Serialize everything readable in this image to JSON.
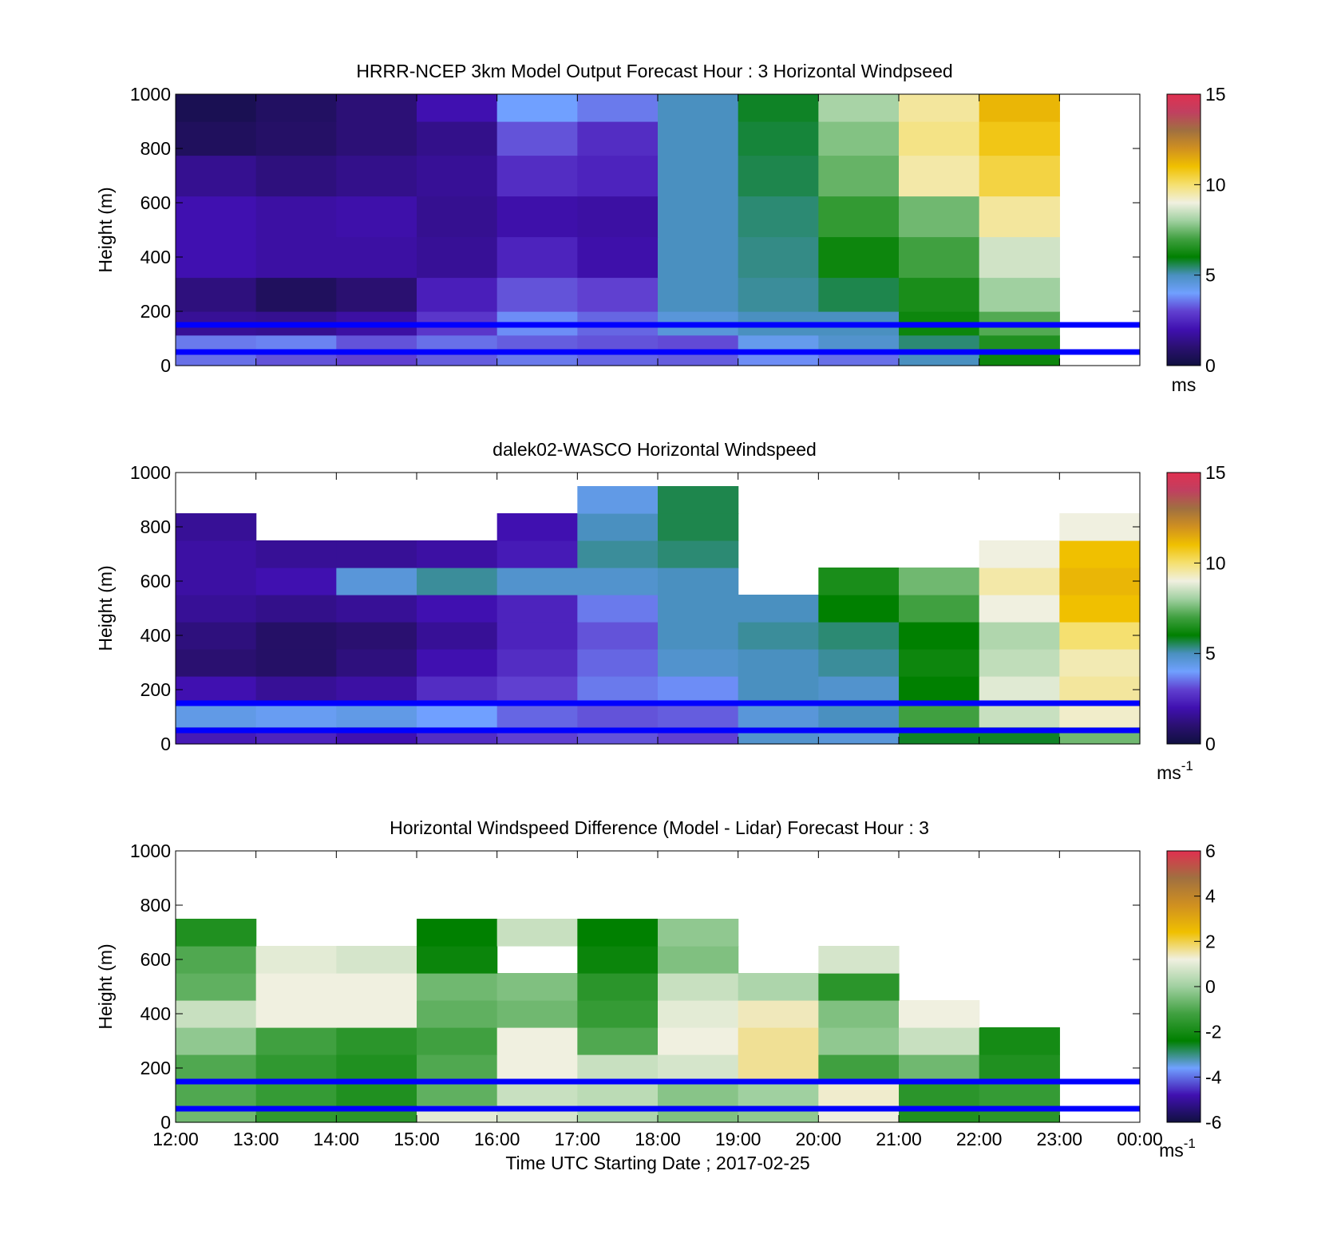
{
  "figure": {
    "xlabel": "Time UTC  Starting Date ; 2017-02-25",
    "x_ticks": [
      "12:00",
      "13:00",
      "14:00",
      "15:00",
      "16:00",
      "17:00",
      "18:00",
      "19:00",
      "20:00",
      "21:00",
      "22:00",
      "23:00",
      "00:00"
    ]
  },
  "colors": {
    "line_markers": "#0000ff",
    "speed_colormap": [
      "#101040",
      "#2a1070",
      "#4010b0",
      "#6040d0",
      "#70a0ff",
      "#4a90c0",
      "#008000",
      "#40a040",
      "#a0d0a0",
      "#f0f0e0",
      "#f5e070",
      "#f0c000",
      "#d09020",
      "#a07040",
      "#c04060",
      "#e03050"
    ],
    "diff_colormap": [
      "#101040",
      "#4010b0",
      "#70a0ff",
      "#008000",
      "#40a040",
      "#a0d0a0",
      "#f0f0e0",
      "#f0c000",
      "#d09020",
      "#a07040",
      "#e03050"
    ]
  },
  "chart_data": [
    {
      "type": "heatmap",
      "title": "HRRR-NCEP 3km Model Output   Forecast Hour : 3 Horizontal Windpseed",
      "ylabel": "Height (m)",
      "ylim": [
        0,
        1000
      ],
      "y_ticks": [
        "0",
        "200",
        "400",
        "600",
        "800",
        "1000"
      ],
      "colorbar": {
        "min": 0,
        "max": 15,
        "ticks": [
          "0",
          "5",
          "10",
          "15"
        ],
        "unit": "ms"
      },
      "marker_lines_height": [
        50,
        150
      ],
      "hours": [
        "12:00",
        "13:00",
        "14:00",
        "15:00",
        "16:00",
        "17:00",
        "18:00",
        "19:00",
        "20:00",
        "21:00",
        "22:00"
      ],
      "height_levels": [
        25,
        75,
        150,
        250,
        400,
        550,
        700,
        850,
        950
      ],
      "values": [
        [
          3.5,
          3.2,
          3.0,
          3.3,
          3.6,
          3.4,
          3.3,
          3.8,
          3.5,
          5.0,
          6.2
        ],
        [
          3.6,
          3.7,
          3.2,
          3.5,
          3.3,
          3.2,
          3.1,
          4.3,
          4.8,
          5.4,
          6.5
        ],
        [
          1.6,
          1.5,
          1.8,
          2.8,
          3.8,
          3.4,
          4.6,
          5.0,
          5.0,
          6.2,
          7.2
        ],
        [
          1.2,
          0.6,
          1.0,
          2.3,
          3.2,
          3.0,
          5.0,
          5.2,
          5.6,
          6.4,
          8.0
        ],
        [
          2.0,
          1.8,
          1.8,
          1.6,
          2.4,
          1.9,
          5.0,
          5.3,
          6.2,
          7.0,
          8.6
        ],
        [
          2.0,
          1.8,
          1.9,
          1.5,
          1.9,
          1.8,
          5.0,
          5.4,
          6.8,
          7.5,
          9.6
        ],
        [
          1.5,
          1.2,
          1.4,
          1.6,
          2.6,
          2.4,
          5.0,
          5.6,
          7.4,
          9.5,
          10.4
        ],
        [
          0.6,
          0.8,
          1.1,
          1.4,
          3.2,
          2.6,
          5.0,
          5.7,
          7.7,
          9.8,
          10.8
        ],
        [
          0.4,
          0.7,
          1.1,
          2.0,
          4.0,
          3.6,
          5.0,
          5.8,
          8.1,
          9.6,
          11.2
        ]
      ]
    },
    {
      "type": "heatmap",
      "title": "dalek02-WASCO  Horizontal Windspeed",
      "ylabel": "Height (m)",
      "ylim": [
        0,
        1000
      ],
      "y_ticks": [
        "0",
        "200",
        "400",
        "600",
        "800",
        "1000"
      ],
      "colorbar": {
        "min": 0,
        "max": 15,
        "ticks": [
          "0",
          "5",
          "10",
          "15"
        ],
        "unit": "ms",
        "unit_exp": "-1"
      },
      "marker_lines_height": [
        50,
        150
      ],
      "hours": [
        "12:00",
        "13:00",
        "14:00",
        "15:00",
        "16:00",
        "17:00",
        "18:00",
        "19:00",
        "20:00",
        "21:00",
        "22:00",
        "23:00"
      ],
      "height_levels": [
        25,
        100,
        200,
        300,
        400,
        500,
        600,
        700,
        800,
        900
      ],
      "values": [
        [
          2.2,
          2.4,
          2.0,
          2.6,
          3.0,
          3.2,
          3.0,
          4.8,
          4.6,
          5.8,
          5.8,
          7.5
        ],
        [
          4.4,
          4.2,
          4.4,
          4.0,
          3.4,
          3.2,
          3.3,
          4.6,
          5.0,
          7.0,
          8.5,
          9.2
        ],
        [
          2.0,
          1.6,
          1.8,
          2.6,
          3.0,
          3.6,
          3.8,
          5.0,
          4.8,
          6.0,
          8.8,
          9.6
        ],
        [
          1.0,
          0.8,
          1.2,
          2.0,
          2.6,
          3.4,
          4.8,
          5.0,
          5.2,
          6.2,
          8.4,
          9.4
        ],
        [
          1.2,
          0.8,
          1.0,
          1.6,
          2.4,
          3.2,
          5.0,
          5.2,
          5.4,
          6.0,
          8.2,
          10.0
        ],
        [
          1.6,
          1.4,
          1.6,
          2.0,
          2.4,
          3.6,
          5.0,
          5.0,
          6.0,
          7.0,
          9.0,
          11.0
        ],
        [
          1.8,
          2.0,
          4.6,
          5.2,
          4.8,
          4.8,
          5.0,
          null,
          6.4,
          7.5,
          9.5,
          11.2
        ],
        [
          1.8,
          1.6,
          1.6,
          1.8,
          2.2,
          5.2,
          5.4,
          null,
          null,
          null,
          9.0,
          11.0
        ],
        [
          1.6,
          null,
          null,
          null,
          2.0,
          5.0,
          5.6,
          null,
          null,
          null,
          null,
          9.0
        ],
        [
          null,
          null,
          null,
          null,
          null,
          4.4,
          5.6,
          null,
          null,
          null,
          null,
          null
        ]
      ]
    },
    {
      "type": "heatmap",
      "title": "Horizontal Windspeed Difference (Model - Lidar) Forecast Hour : 3",
      "ylabel": "Height (m)",
      "ylim": [
        0,
        1000
      ],
      "y_ticks": [
        "0",
        "200",
        "400",
        "600",
        "800",
        "1000"
      ],
      "colorbar": {
        "min": -6,
        "max": 6,
        "ticks": [
          "-6",
          "-4",
          "-2",
          "0",
          "2",
          "4",
          "6"
        ],
        "unit": "ms",
        "unit_exp": "-1"
      },
      "marker_lines_height": [
        50,
        150
      ],
      "hours": [
        "12:00",
        "13:00",
        "14:00",
        "15:00",
        "16:00",
        "17:00",
        "18:00",
        "19:00",
        "20:00",
        "21:00",
        "22:00"
      ],
      "height_levels": [
        25,
        100,
        200,
        300,
        400,
        500,
        600,
        700
      ],
      "values": [
        [
          -0.6,
          -1.5,
          -1.6,
          1.0,
          0.8,
          0.2,
          -0.4,
          -0.2,
          1.2,
          -1.8,
          -1.6
        ],
        [
          -1.0,
          -1.4,
          -1.8,
          -0.8,
          0.6,
          0.4,
          -0.3,
          0.0,
          1.3,
          -1.6,
          -1.4
        ],
        [
          -1.0,
          -1.5,
          -1.8,
          -1.0,
          1.2,
          0.6,
          0.8,
          1.6,
          -1.2,
          -0.6,
          -1.8
        ],
        [
          -0.2,
          -1.2,
          -1.6,
          -1.2,
          1.2,
          -1.0,
          1.2,
          1.6,
          -0.2,
          0.6,
          -2.0
        ],
        [
          0.6,
          1.2,
          1.2,
          -0.8,
          -0.6,
          -1.4,
          1.0,
          1.4,
          -0.4,
          1.2,
          null
        ],
        [
          -0.8,
          1.2,
          1.2,
          -0.6,
          -0.4,
          -1.6,
          0.6,
          0.2,
          -1.6,
          null,
          null
        ],
        [
          -1.0,
          1.0,
          0.8,
          -2.2,
          null,
          -2.2,
          -0.4,
          null,
          0.8,
          null,
          null
        ],
        [
          -1.8,
          null,
          null,
          -2.4,
          0.6,
          -2.4,
          -0.2,
          null,
          null,
          null,
          null
        ]
      ]
    }
  ]
}
